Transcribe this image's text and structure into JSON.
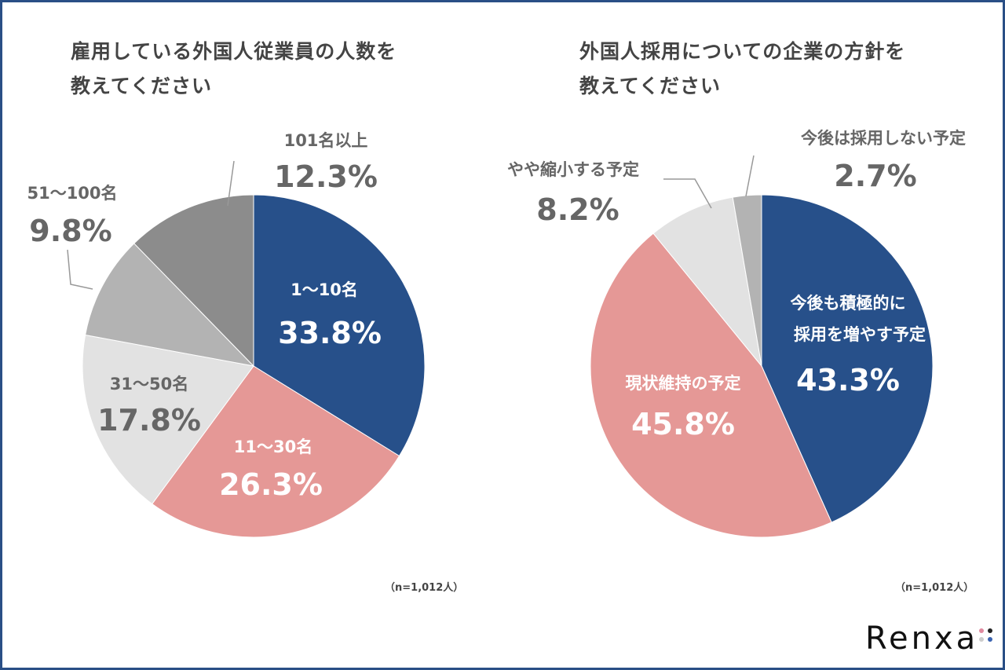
{
  "chart_data": [
    {
      "type": "pie",
      "title": "雇用している外国人従業員の人数を教えてください",
      "title_lines": [
        "雇用している外国人従業員の人数を",
        "教えてください"
      ],
      "note": "（n=1,012人）",
      "slices": [
        {
          "label": "1〜10名",
          "value": 33.8,
          "display": "33.8%",
          "color": "#27508a"
        },
        {
          "label": "11〜30名",
          "value": 26.3,
          "display": "26.3%",
          "color": "#e59896"
        },
        {
          "label": "31〜50名",
          "value": 17.8,
          "display": "17.8%",
          "color": "#e2e2e2"
        },
        {
          "label": "51〜100名",
          "value": 9.8,
          "display": "9.8%",
          "color": "#b3b3b3"
        },
        {
          "label": "101名以上",
          "value": 12.3,
          "display": "12.3%",
          "color": "#8c8c8c"
        }
      ]
    },
    {
      "type": "pie",
      "title": "外国人採用についての企業の方針を教えてください",
      "title_lines": [
        "外国人採用についての企業の方針を",
        "教えてください"
      ],
      "note": "（n=1,012人）",
      "slices": [
        {
          "label": "今後も積極的に採用を増やす予定",
          "label_lines": [
            "今後も積極的に",
            "採用を増やす予定"
          ],
          "value": 43.3,
          "display": "43.3%",
          "color": "#27508a"
        },
        {
          "label": "現状維持の予定",
          "value": 45.8,
          "display": "45.8%",
          "color": "#e59896"
        },
        {
          "label": "やや縮小する予定",
          "value": 8.2,
          "display": "8.2%",
          "color": "#e2e2e2"
        },
        {
          "label": "今後は採用しない予定",
          "value": 2.7,
          "display": "2.7%",
          "color": "#b3b3b3"
        }
      ]
    }
  ],
  "logo": {
    "text": "Renxa",
    "dot_colors": [
      "#e08aa0",
      "#222222",
      "#cccccc",
      "#3a63b0"
    ]
  }
}
